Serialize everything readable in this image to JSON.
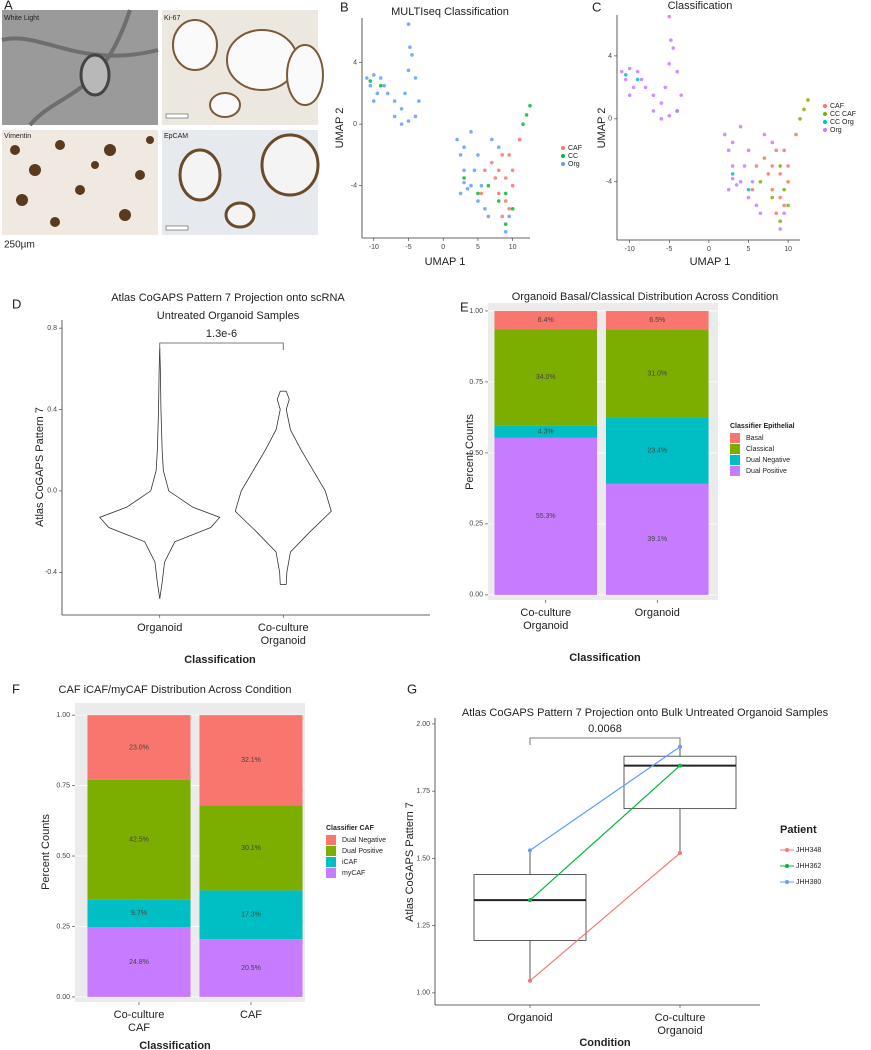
{
  "panel_a": {
    "label": "A",
    "images": [
      "White Light",
      "Ki-67",
      "Vimentin",
      "EpCAM"
    ],
    "scale_bar": "250µm"
  },
  "chart_data": [
    {
      "type": "scatter",
      "panel": "B",
      "title": "MULTIseq Classification",
      "x_label": "UMAP 1",
      "y_label": "UMAP 2",
      "xlim": [
        -11.7,
        12.5
      ],
      "ylim": [
        -7.4,
        6.9
      ],
      "xticks": [
        -10,
        -5,
        0,
        5,
        10
      ],
      "yticks": [
        -4,
        0,
        4
      ],
      "series": [
        {
          "name": "CAF",
          "color": "#F8766D",
          "x": [
            6,
            7,
            7.5,
            8,
            8.5,
            9,
            9,
            9.5,
            10,
            10,
            8,
            5.5,
            11,
            8.5,
            9.5
          ],
          "y": [
            -3,
            -2.5,
            -3.5,
            -3,
            -2,
            -3.5,
            -5,
            -2,
            -4,
            -3,
            -4.5,
            -4.5,
            -1,
            -6,
            -5.5
          ]
        },
        {
          "name": "CC",
          "color": "#00BA38",
          "x": [
            11.5,
            12,
            12.5,
            3,
            9,
            10,
            -9,
            8,
            9,
            6.5,
            5,
            -10.5
          ],
          "y": [
            0,
            0.6,
            1.2,
            -3.5,
            -4.5,
            -5.5,
            2.5,
            -5,
            -6.5,
            -4,
            -4.5,
            2.8
          ]
        },
        {
          "name": "Org",
          "color": "#619CFF",
          "x": [
            -11,
            -10.5,
            -10,
            -9.5,
            -9,
            -8,
            -7,
            -6,
            -5.5,
            -5,
            -4.8,
            -5,
            -4.5,
            -4,
            -3.5,
            -4,
            -5,
            -6,
            -7,
            -8.5,
            -10,
            2,
            2.5,
            3,
            3,
            2.5,
            3.5,
            4,
            4.5,
            5,
            5,
            5.5,
            6,
            4,
            3,
            7,
            8,
            9.5,
            9,
            6.5
          ],
          "y": [
            3,
            2.5,
            3.2,
            2,
            3,
            2,
            1.5,
            1,
            2,
            3.5,
            5,
            6.5,
            4.5,
            3,
            1.5,
            0.5,
            0.2,
            0,
            0.5,
            2.5,
            1.5,
            -1,
            -2,
            -1.5,
            -3,
            -4.5,
            -4.2,
            -4,
            -3,
            -2,
            -5,
            -4,
            -5.5,
            -0.5,
            -3.8,
            -1,
            -1.5,
            -6,
            -7,
            -6
          ]
        }
      ]
    },
    {
      "type": "scatter",
      "panel": "C",
      "title": "Classification",
      "x_label": "UMAP 1",
      "y_label": "UMAP 2",
      "xlim": [
        -11.6,
        11.5
      ],
      "ylim": [
        -7.7,
        6.6
      ],
      "xticks": [
        -10,
        -5,
        0,
        5,
        10
      ],
      "yticks": [
        -4,
        0,
        4
      ],
      "series": [
        {
          "name": "CAF",
          "color": "#F8766D",
          "x": [
            6,
            7,
            7.5,
            8,
            8.5,
            9,
            9,
            9.5,
            10,
            10,
            8,
            5.5,
            11,
            8.5,
            9.5
          ],
          "y": [
            -3,
            -2.5,
            -3.5,
            -3,
            -2,
            -3.5,
            -5,
            -2,
            -4,
            -3,
            -4.5,
            -4.5,
            -1,
            -6,
            -5.5
          ]
        },
        {
          "name": "CC CAF",
          "color": "#7CAE00",
          "x": [
            11.5,
            12,
            12.5,
            8,
            9,
            9.5,
            10,
            6.5,
            9
          ],
          "y": [
            0,
            0.6,
            1.2,
            -5,
            -6.5,
            -4.5,
            -5.5,
            -4,
            -3
          ]
        },
        {
          "name": "CC Org",
          "color": "#00BFC4",
          "x": [
            -10.5,
            -9,
            -4,
            5,
            3
          ],
          "y": [
            2.8,
            2.5,
            0.5,
            -4.5,
            -3.5
          ]
        },
        {
          "name": "Org",
          "color": "#C77CFF",
          "x": [
            -11,
            -10.5,
            -10,
            -9.5,
            -9,
            -8,
            -7,
            -6,
            -5.5,
            -5,
            -4.8,
            -5,
            -4.5,
            -4,
            -3.5,
            -4,
            -5,
            -6,
            -7,
            -8.5,
            -10,
            2,
            2.5,
            3,
            3,
            2.5,
            3.5,
            4,
            4.5,
            5,
            5,
            5.5,
            6,
            4,
            3,
            7,
            8,
            9.5,
            9,
            6.5
          ],
          "y": [
            3,
            2.5,
            3.2,
            2,
            3,
            2,
            1.5,
            1,
            2,
            3.5,
            5,
            6.5,
            4.5,
            3,
            1.5,
            0.5,
            0.2,
            0,
            0.5,
            2.5,
            1.5,
            -1,
            -2,
            -1.5,
            -3,
            -4.5,
            -4.2,
            -4,
            -3,
            -2,
            -5,
            -4,
            -5.5,
            -0.5,
            -3.8,
            -1,
            -1.5,
            -6,
            -7,
            -6
          ]
        }
      ]
    },
    {
      "type": "violin",
      "panel": "D",
      "title": "Atlas CoGAPS Pattern 7 Projection onto scRNA",
      "subtitle": "Untreated Organoid Samples",
      "x_label": "Classification",
      "y_label": "Atlas CoGAPS Pattern 7",
      "categories": [
        "Organoid",
        "Co-culture\nOrganoid"
      ],
      "ylim": [
        -0.61,
        0.84
      ],
      "yticks": [
        -0.4,
        {
          "value": 0,
          "label": "0.0"
        },
        0.4,
        0.8
      ],
      "annotation": "1.3e-6",
      "violins": [
        {
          "y": [
            -0.53,
            -0.45,
            -0.35,
            -0.25,
            -0.18,
            -0.13,
            -0.08,
            0.0,
            0.1,
            0.2,
            0.3,
            0.4,
            0.5,
            0.6,
            0.7
          ],
          "density": [
            0,
            0.04,
            0.08,
            0.25,
            0.85,
            1.0,
            0.55,
            0.15,
            0.06,
            0.04,
            0.03,
            0.02,
            0.015,
            0.01,
            0
          ]
        },
        {
          "y": [
            -0.46,
            -0.4,
            -0.3,
            -0.2,
            -0.1,
            0.0,
            0.1,
            0.2,
            0.3,
            0.4,
            0.45,
            0.49
          ],
          "density": [
            0.05,
            0.06,
            0.12,
            0.45,
            0.8,
            0.7,
            0.5,
            0.3,
            0.12,
            0.05,
            0.1,
            0.05
          ]
        }
      ]
    },
    {
      "type": "bar",
      "stacked": true,
      "panel": "E",
      "title": "Organoid Basal/Classical Distribution Across Condition",
      "x_label": "Classification",
      "y_label": "Percent Counts",
      "legend_title": "Classifier Epithelial",
      "grid": true,
      "categories": [
        "Co-culture\nOrganoid",
        "Organoid"
      ],
      "ylim": [
        -0.018,
        1.028
      ],
      "yticks": [
        {
          "value": 0,
          "label": "0.00"
        },
        {
          "value": 0.25,
          "label": "0.25"
        },
        {
          "value": 0.5,
          "label": "0.50"
        },
        {
          "value": 0.75,
          "label": "0.75"
        },
        {
          "value": 1,
          "label": "1.00"
        }
      ],
      "series": [
        {
          "name": "Basal",
          "color": "#F8766D",
          "values": [
            0.064,
            0.065
          ],
          "value_labels": [
            "6.4%",
            "6.5%"
          ]
        },
        {
          "name": "Classical",
          "color": "#7CAE00",
          "values": [
            0.34,
            0.31
          ],
          "value_labels": [
            "34.0%",
            "31.0%"
          ]
        },
        {
          "name": "Dual Negative",
          "color": "#00BFC4",
          "values": [
            0.043,
            0.234
          ],
          "value_labels": [
            "4.3%",
            "23.4%"
          ]
        },
        {
          "name": "Dual Positive",
          "color": "#C77CFF",
          "values": [
            0.553,
            0.391
          ],
          "value_labels": [
            "55.3%",
            "39.1%"
          ]
        }
      ]
    },
    {
      "type": "bar",
      "stacked": true,
      "panel": "F",
      "title": "CAF iCAF/myCAF Distribution Across Condition",
      "x_label": "Classification",
      "y_label": "Percent Counts",
      "legend_title": "Classifier CAF",
      "grid": true,
      "categories": [
        "Co-culture\nCAF",
        "CAF"
      ],
      "ylim": [
        -0.018,
        1.043
      ],
      "yticks": [
        {
          "value": 0,
          "label": "0.00"
        },
        {
          "value": 0.25,
          "label": "0.25"
        },
        {
          "value": 0.5,
          "label": "0.50"
        },
        {
          "value": 0.75,
          "label": "0.75"
        },
        {
          "value": 1,
          "label": "1.00"
        }
      ],
      "series": [
        {
          "name": "Dual Negative",
          "color": "#F8766D",
          "values": [
            0.23,
            0.321
          ],
          "value_labels": [
            "23.0%",
            "32.1%"
          ]
        },
        {
          "name": "Dual Positive",
          "color": "#7CAE00",
          "values": [
            0.425,
            0.301
          ],
          "value_labels": [
            "42.5%",
            "30.1%"
          ]
        },
        {
          "name": "iCAF",
          "color": "#00BFC4",
          "values": [
            0.097,
            0.173
          ],
          "value_labels": [
            "9.7%",
            "17.3%"
          ]
        },
        {
          "name": "myCAF",
          "color": "#C77CFF",
          "values": [
            0.248,
            0.205
          ],
          "value_labels": [
            "24.8%",
            "20.5%"
          ]
        }
      ]
    },
    {
      "type": "box",
      "panel": "G",
      "title": "Atlas CoGAPS Pattern 7 Projection onto Bulk Untreated Organoid Samples",
      "x_label": "Condition",
      "y_label": "Atlas CoGAPS Pattern 7",
      "legend_title": "Patient",
      "annotation": "0.0068",
      "categories": [
        "Organoid",
        "Co-culture\nOrganoid"
      ],
      "ylim": [
        0.955,
        2.022
      ],
      "yticks": [
        {
          "value": 1,
          "label": "1.00"
        },
        1.25,
        {
          "value": 1.5,
          "label": "1.50"
        },
        1.75,
        {
          "value": 2,
          "label": "2.00"
        }
      ],
      "boxes": [
        {
          "min": 1.04,
          "q1": 1.195,
          "median": 1.345,
          "q3": 1.44,
          "max": 1.53
        },
        {
          "min": 1.52,
          "q1": 1.685,
          "median": 1.845,
          "q3": 1.88,
          "max": 1.915
        }
      ],
      "series": [
        {
          "name": "JHH348",
          "color": "#F8766D",
          "values": [
            1.045,
            1.52
          ]
        },
        {
          "name": "JHH362",
          "color": "#00BA38",
          "values": [
            1.345,
            1.845
          ]
        },
        {
          "name": "JHH380",
          "color": "#619CFF",
          "values": [
            1.53,
            1.915
          ]
        }
      ]
    }
  ]
}
